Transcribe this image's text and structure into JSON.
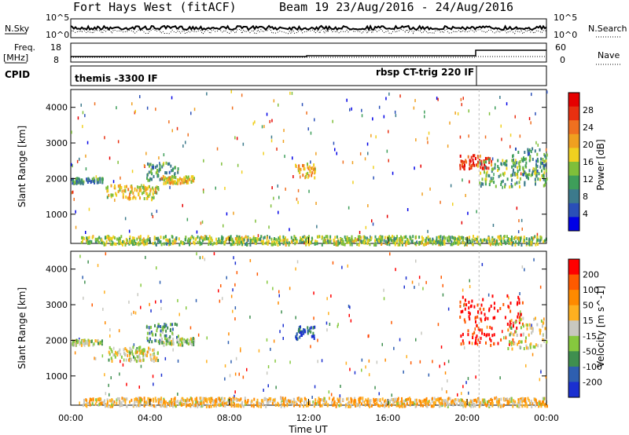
{
  "header": {
    "site": "Fort Hays West (fitACF)",
    "beam_date": "Beam 19 23/Aug/2016 - 24/Aug/2016"
  },
  "top_panels": {
    "nsky_label": "N.Sky",
    "nsearch_label": "N.Search",
    "freq_label_1": "Freq.",
    "freq_label_2": "[MHz]",
    "nave_label": "Nave",
    "cpid_label": "CPID",
    "noise_ticks_left": [
      "10^5",
      "10^0"
    ],
    "noise_ticks_right": [
      "10^5",
      "10^0"
    ],
    "freq_ticks_left": [
      "18",
      "8"
    ],
    "freq_ticks_right": [
      "60",
      "0"
    ],
    "cpid_segments": [
      {
        "label": "themis -3300 IF",
        "start_hour": 0
      },
      {
        "label": "rbsp CT-trig 220 IF",
        "start_hour": 20.6
      }
    ]
  },
  "colors": {
    "power_scale": [
      "#0000e6",
      "#2a4fb8",
      "#3c7a8c",
      "#3e9e5a",
      "#7fbf3a",
      "#f0d020",
      "#f0a020",
      "#f07020",
      "#e83010",
      "#e60000"
    ],
    "velocity_scale": [
      "#1a2fd0",
      "#2e5fb0",
      "#3f8f4f",
      "#86c93e",
      "#c8c8c0",
      "#ffb020",
      "#ff8a00",
      "#ff5a00",
      "#ff0000"
    ]
  },
  "chart_data": [
    {
      "type": "heatmap",
      "name": "power",
      "xlabel": "Time UT",
      "ylabel": "Slant Range [km]",
      "colorbar_label": "Power [dB]",
      "colorbar_ticks": [
        "28",
        "24",
        "20",
        "16",
        "12",
        "8",
        "4"
      ],
      "xlim_hours": [
        0,
        24
      ],
      "ylim_km": [
        180,
        4500
      ],
      "ytick_labels": [
        "4000",
        "3000",
        "2000",
        "1000"
      ],
      "xtick_labels": [
        "00:00",
        "04:00",
        "08:00",
        "12:00",
        "16:00",
        "20:00",
        "00:00"
      ],
      "regions": [
        {
          "t0": 0.0,
          "t1": 1.6,
          "r0": 1900,
          "r1": 2050,
          "level": 0.3
        },
        {
          "t0": 1.8,
          "t1": 4.4,
          "r0": 1450,
          "r1": 1850,
          "level": 0.55
        },
        {
          "t0": 3.8,
          "t1": 5.4,
          "r0": 1950,
          "r1": 2500,
          "level": 0.35
        },
        {
          "t0": 4.5,
          "t1": 6.2,
          "r0": 1900,
          "r1": 2100,
          "level": 0.6
        },
        {
          "t0": 11.3,
          "t1": 12.3,
          "r0": 2050,
          "r1": 2450,
          "level": 0.6
        },
        {
          "t0": 19.6,
          "t1": 21.2,
          "r0": 2300,
          "r1": 2700,
          "level": 0.85
        },
        {
          "t0": 20.5,
          "t1": 24.0,
          "r0": 1800,
          "r1": 2600,
          "level": 0.4
        },
        {
          "t0": 22.2,
          "t1": 24.0,
          "r0": 2100,
          "r1": 2900,
          "level": 0.35
        },
        {
          "t0": 0.5,
          "t1": 24.0,
          "r0": 180,
          "r1": 420,
          "level": 0.45
        }
      ]
    },
    {
      "type": "heatmap",
      "name": "velocity",
      "xlabel": "Time UT",
      "ylabel": "Slant Range [km]",
      "colorbar_label": "Velocity [m s^-1]",
      "colorbar_ticks": [
        "200",
        "100",
        "50",
        "15",
        "-15",
        "-50",
        "-100",
        "-200"
      ],
      "xlim_hours": [
        0,
        24
      ],
      "ylim_km": [
        180,
        4500
      ],
      "ytick_labels": [
        "4000",
        "3000",
        "2000",
        "1000"
      ],
      "xtick_labels": [
        "00:00",
        "04:00",
        "08:00",
        "12:00",
        "16:00",
        "20:00",
        "00:00"
      ],
      "regions": [
        {
          "t0": 0.0,
          "t1": 1.6,
          "r0": 1900,
          "r1": 2050,
          "level": 0.45
        },
        {
          "t0": 1.8,
          "t1": 4.4,
          "r0": 1450,
          "r1": 1850,
          "level": 0.5
        },
        {
          "t0": 3.8,
          "t1": 5.4,
          "r0": 1950,
          "r1": 2500,
          "level": 0.3
        },
        {
          "t0": 4.5,
          "t1": 6.2,
          "r0": 1900,
          "r1": 2100,
          "level": 0.45
        },
        {
          "t0": 11.3,
          "t1": 12.3,
          "r0": 2050,
          "r1": 2450,
          "level": 0.1
        },
        {
          "t0": 19.6,
          "t1": 22.8,
          "r0": 1900,
          "r1": 3300,
          "level": 0.95
        },
        {
          "t0": 22.0,
          "t1": 24.0,
          "r0": 1800,
          "r1": 2700,
          "level": 0.5
        },
        {
          "t0": 0.5,
          "t1": 24.0,
          "r0": 180,
          "r1": 420,
          "level": 0.6
        }
      ]
    }
  ]
}
